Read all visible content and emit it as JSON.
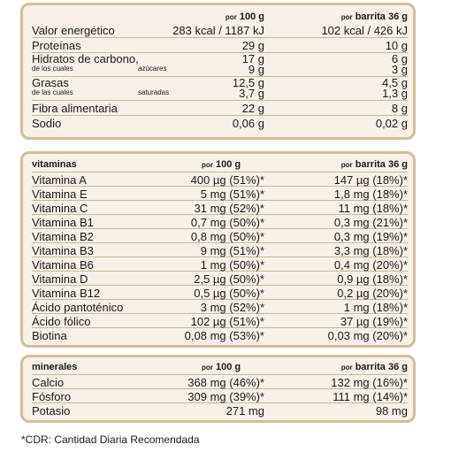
{
  "nutrition": {
    "header_a_prefix": "por",
    "header_a": "100 g",
    "header_b_prefix": "por",
    "header_b": "barrita 36 g",
    "rows": [
      {
        "label": "Valor energético",
        "a": "283 kcal / 1187 kJ",
        "b": "102 kcal / 426 kJ"
      },
      {
        "label": "Proteínas",
        "a": "29 g",
        "b": "10 g"
      },
      {
        "label": "Hidratos de carbono,",
        "sub_left": "de los cuales",
        "sub_mid": "azúcares",
        "a": "17 g",
        "a2": "9 g",
        "b": "6 g",
        "b2": "3 g"
      },
      {
        "label": "Grasas",
        "sub_left": "de las cuales",
        "sub_mid": "saturadas",
        "a": "12,5 g",
        "a2": "3,7 g",
        "b": "4,5 g",
        "b2": "1,3 g"
      },
      {
        "label": "Fibra alimentaria",
        "a": "22 g",
        "b": "8 g"
      },
      {
        "label": "Sodio",
        "a": "0,06 g",
        "b": "0,02 g"
      }
    ]
  },
  "vitamins": {
    "title": "vitaminas",
    "header_a_prefix": "por",
    "header_a": "100 g",
    "header_b_prefix": "por",
    "header_b": "barrita 36 g",
    "rows": [
      {
        "label": "Vitamina A",
        "a": "400 µg (51%)*",
        "b": "147 µg (18%)*"
      },
      {
        "label": "Vitamina E",
        "a": "5 mg (51%)*",
        "b": "1,8 mg (18%)*"
      },
      {
        "label": "Vitamina C",
        "a": "31 mg (52%)*",
        "b": "11 mg (18%)*"
      },
      {
        "label": "Vitamina B1",
        "a": "0,7 mg (50%)*",
        "b": "0,3 mg (21%)*"
      },
      {
        "label": "Vitamina B2",
        "a": "0,8 mg (50%)*",
        "b": "0,3 mg (19%)*"
      },
      {
        "label": "Vitamina B3",
        "a": "9 mg (51%)*",
        "b": "3,3 mg (18%)*"
      },
      {
        "label": "Vitamina B6",
        "a": "1 mg (50%)*",
        "b": "0,4 mg (20%)*"
      },
      {
        "label": "Vitamina D",
        "a": "2,5 µg (50%)*",
        "b": "0,9 µg (18%)*"
      },
      {
        "label": "Vitamina B12",
        "a": "0,5 µg (50%)*",
        "b": "0,2 µg (20%)*"
      },
      {
        "label": "Ácido pantoténico",
        "a": "3 mg (52%)*",
        "b": "1 mg (18%)*"
      },
      {
        "label": "Ácido fólico",
        "a": "102 µg (51%)*",
        "b": "37 µg (19%)*"
      },
      {
        "label": "Biotina",
        "a": "0,08 mg (53%)*",
        "b": "0,03 mg (20%)*"
      }
    ]
  },
  "minerals": {
    "title": "minerales",
    "header_a_prefix": "por",
    "header_a": "100 g",
    "header_b_prefix": "por",
    "header_b": "barrita 36 g",
    "rows": [
      {
        "label": "Calcio",
        "a": "368 mg (46%)*",
        "b": "132 mg (16%)*"
      },
      {
        "label": "Fósforo",
        "a": "309 mg (39%)*",
        "b": "111 mg (14%)*"
      },
      {
        "label": "Potasio",
        "a": "271 mg",
        "b": "98 mg"
      }
    ]
  },
  "footnote": "*CDR: Cantidad Diaria Recomendada",
  "colors": {
    "panel_bg": "#f7f1e8",
    "panel_border": "#d3bd98",
    "rule": "#c9b898"
  }
}
